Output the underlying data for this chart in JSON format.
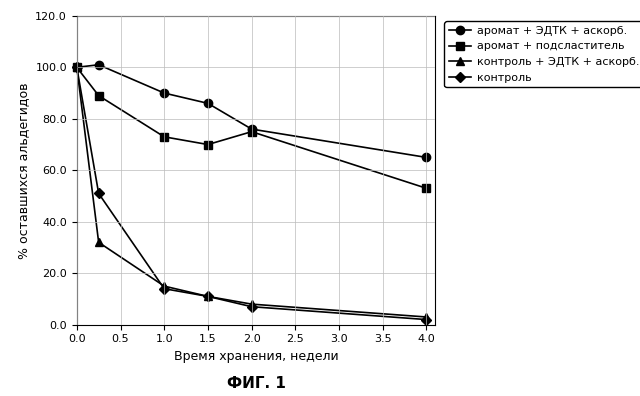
{
  "series": [
    {
      "label": "аромат + ЭДТК + аскорб.",
      "x": [
        0.0,
        0.25,
        1.0,
        1.5,
        2.0,
        4.0
      ],
      "y": [
        100.0,
        101.0,
        90.0,
        86.0,
        76.0,
        65.0
      ],
      "marker": "o",
      "color": "#000000",
      "linestyle": "-",
      "linewidth": 1.2,
      "markersize": 6
    },
    {
      "label": "аромат + подсластитель",
      "x": [
        0.0,
        0.25,
        1.0,
        1.5,
        2.0,
        4.0
      ],
      "y": [
        100.0,
        89.0,
        73.0,
        70.0,
        75.0,
        53.0
      ],
      "marker": "s",
      "color": "#000000",
      "linestyle": "-",
      "linewidth": 1.2,
      "markersize": 6
    },
    {
      "label": "контроль + ЭДТК + аскорб.",
      "x": [
        0.0,
        0.25,
        1.0,
        1.5,
        2.0,
        4.0
      ],
      "y": [
        100.0,
        32.0,
        15.0,
        11.0,
        8.0,
        3.0
      ],
      "marker": "^",
      "color": "#000000",
      "linestyle": "-",
      "linewidth": 1.2,
      "markersize": 6
    },
    {
      "label": "контроль",
      "x": [
        0.0,
        0.25,
        1.0,
        1.5,
        2.0,
        4.0
      ],
      "y": [
        100.0,
        51.0,
        14.0,
        11.0,
        7.0,
        2.0
      ],
      "marker": "D",
      "color": "#000000",
      "linestyle": "-",
      "linewidth": 1.2,
      "markersize": 5
    }
  ],
  "xlabel": "Время хранения, недели",
  "ylabel": "% оставшихся альдегидов",
  "caption": "ФИГ. 1",
  "xlim": [
    0.0,
    4.1
  ],
  "ylim": [
    0.0,
    120.0
  ],
  "xticks": [
    0.0,
    0.5,
    1.0,
    1.5,
    2.0,
    2.5,
    3.0,
    3.5,
    4.0
  ],
  "yticks": [
    0.0,
    20.0,
    40.0,
    60.0,
    80.0,
    100.0,
    120.0
  ],
  "grid": true,
  "background_color": "#ffffff",
  "legend_fontsize": 8,
  "axis_fontsize": 9,
  "tick_fontsize": 8,
  "caption_fontsize": 11
}
